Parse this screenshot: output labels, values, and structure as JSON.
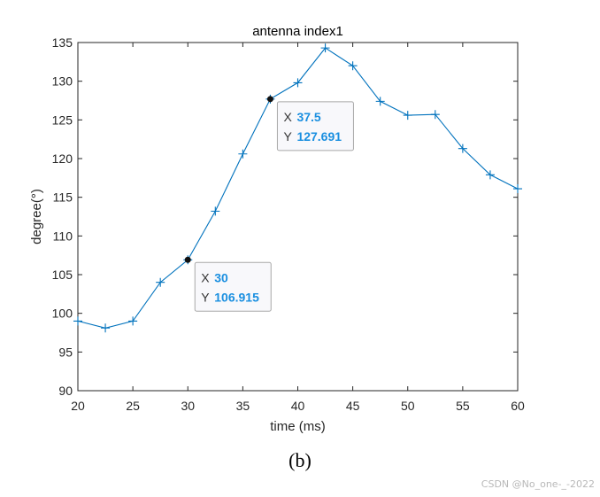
{
  "chart_data": {
    "type": "line",
    "title": "antenna index1",
    "xlabel": "time (ms)",
    "ylabel": "degree(°)",
    "xlim": [
      20,
      60
    ],
    "ylim": [
      90,
      135
    ],
    "x_ticks": [
      20,
      25,
      30,
      35,
      40,
      45,
      50,
      55,
      60
    ],
    "y_ticks": [
      90,
      95,
      100,
      105,
      110,
      115,
      120,
      125,
      130,
      135
    ],
    "grid": false,
    "legend": "none",
    "marker": "+",
    "colors": {
      "line": "#0072BD",
      "datatip_value": "#1a8fe0"
    },
    "series": [
      {
        "x": [
          20,
          22.5,
          25,
          27.5,
          30,
          32.5,
          35,
          37.5,
          40,
          42.5,
          45,
          47.5,
          50,
          52.5,
          55,
          57.5,
          60
        ],
        "y": [
          99.0,
          98.1,
          99.0,
          104.0,
          106.915,
          113.2,
          120.6,
          127.691,
          129.8,
          134.3,
          132.0,
          127.4,
          125.6,
          125.7,
          121.3,
          117.9,
          116.1
        ]
      }
    ],
    "datatips": [
      {
        "x_label": "X",
        "x_value": "37.5",
        "y_label": "Y",
        "y_value": "127.691",
        "x": 37.5,
        "y": 127.691
      },
      {
        "x_label": "X",
        "x_value": "30",
        "y_label": "Y",
        "y_value": "106.915",
        "x": 30,
        "y": 106.915
      }
    ]
  },
  "caption": "(b)",
  "watermark": "CSDN @No_one-_-2022"
}
